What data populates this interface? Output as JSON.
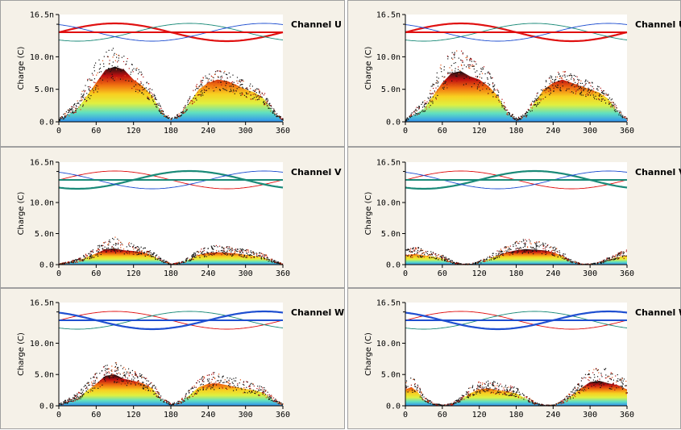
{
  "colors": {
    "panel_bg": "#f5f1e8",
    "plot_bg": "#ffffff",
    "phase_u": "#e01010",
    "phase_v": "#1a8a78",
    "phase_w": "#1f4fd0",
    "scatter_gradient": [
      "#111111",
      "#c01010",
      "#f07010",
      "#f8d020",
      "#e0f040",
      "#60e0c0",
      "#3090f0"
    ]
  },
  "ylabel": "Charge (C)",
  "y_ticks": [
    "16.5n",
    "10.0n",
    "5.0n",
    "0.0"
  ],
  "x_ticks": [
    "0",
    "60",
    "120",
    "180",
    "240",
    "300",
    "360"
  ],
  "chart_data": [
    {
      "type": "scatter",
      "channel": "Channel U",
      "highlight_phase": "U",
      "ylabel": "Charge (C)",
      "xlim": [
        0,
        360
      ],
      "ylim": [
        0,
        16.5
      ],
      "envelope_x": [
        0,
        30,
        60,
        75,
        90,
        105,
        120,
        135,
        150,
        165,
        180,
        195,
        210,
        225,
        240,
        255,
        270,
        285,
        300,
        315,
        330,
        345,
        360
      ],
      "envelope_y": [
        0.3,
        2.0,
        6.0,
        8.0,
        8.5,
        8.0,
        6.5,
        5.5,
        4.0,
        1.5,
        0.3,
        1.0,
        3.0,
        5.0,
        6.0,
        6.5,
        6.3,
        5.7,
        5.0,
        4.5,
        3.5,
        1.5,
        0.3
      ],
      "peak_y": [
        0.6,
        3.5,
        9.5,
        11.0,
        11.5,
        10.5,
        9.0,
        7.5,
        5.0,
        2.0,
        0.6,
        1.5,
        4.0,
        6.5,
        7.5,
        8.0,
        7.8,
        7.0,
        6.3,
        5.5,
        4.5,
        2.0,
        0.6
      ]
    },
    {
      "type": "scatter",
      "channel": "Channel U",
      "highlight_phase": "U",
      "ylabel": "Charge (C)",
      "xlim": [
        0,
        360
      ],
      "ylim": [
        0,
        16.5
      ],
      "envelope_x": [
        0,
        30,
        60,
        75,
        90,
        105,
        120,
        135,
        150,
        165,
        180,
        195,
        210,
        225,
        240,
        255,
        270,
        285,
        300,
        315,
        330,
        345,
        360
      ],
      "envelope_y": [
        0.3,
        2.0,
        6.0,
        7.5,
        7.8,
        7.0,
        6.5,
        5.5,
        4.0,
        1.5,
        0.3,
        1.0,
        3.0,
        5.0,
        6.0,
        6.5,
        6.0,
        5.5,
        5.0,
        4.5,
        3.5,
        1.5,
        0.3
      ],
      "peak_y": [
        0.6,
        3.5,
        9.5,
        11.0,
        11.0,
        10.0,
        9.0,
        8.0,
        5.0,
        2.0,
        0.6,
        1.5,
        4.0,
        6.5,
        7.5,
        8.0,
        7.5,
        6.8,
        6.3,
        5.5,
        4.5,
        2.0,
        0.6
      ]
    },
    {
      "type": "scatter",
      "channel": "Channel V",
      "highlight_phase": "V",
      "ylabel": "Charge (C)",
      "xlim": [
        0,
        360
      ],
      "ylim": [
        0,
        16.5
      ],
      "envelope_x": [
        0,
        30,
        60,
        75,
        90,
        105,
        120,
        135,
        150,
        165,
        180,
        195,
        210,
        225,
        240,
        255,
        270,
        285,
        300,
        315,
        330,
        345,
        360
      ],
      "envelope_y": [
        0.1,
        0.6,
        1.8,
        2.5,
        2.6,
        2.3,
        2.2,
        2.0,
        1.5,
        0.6,
        0.1,
        0.3,
        0.9,
        1.6,
        1.9,
        2.0,
        1.9,
        1.8,
        1.6,
        1.4,
        1.1,
        0.5,
        0.1
      ],
      "peak_y": [
        0.2,
        1.0,
        3.0,
        4.0,
        4.5,
        3.8,
        3.5,
        3.0,
        2.2,
        1.0,
        0.2,
        0.5,
        1.5,
        2.6,
        3.0,
        3.2,
        3.0,
        2.8,
        2.5,
        2.2,
        1.8,
        0.8,
        0.2
      ]
    },
    {
      "type": "scatter",
      "channel": "Channel V",
      "highlight_phase": "V",
      "ylabel": "Charge (C)",
      "xlim": [
        0,
        360
      ],
      "ylim": [
        0,
        16.5
      ],
      "envelope_x": [
        0,
        15,
        30,
        45,
        60,
        75,
        90,
        105,
        120,
        135,
        150,
        165,
        180,
        195,
        210,
        225,
        240,
        255,
        270,
        285,
        300,
        315,
        330,
        345,
        360
      ],
      "envelope_y": [
        1.5,
        1.7,
        1.5,
        1.3,
        1.0,
        0.4,
        0.1,
        0.1,
        0.4,
        0.9,
        1.5,
        2.0,
        2.3,
        2.5,
        2.4,
        2.3,
        2.0,
        1.4,
        0.5,
        0.1,
        0.1,
        0.3,
        0.8,
        1.2,
        1.5
      ],
      "peak_y": [
        2.5,
        3.0,
        2.6,
        2.2,
        1.6,
        0.7,
        0.2,
        0.2,
        0.7,
        1.5,
        2.5,
        3.2,
        3.8,
        4.5,
        4.0,
        3.6,
        3.0,
        2.2,
        0.8,
        0.2,
        0.2,
        0.5,
        1.3,
        2.0,
        2.5
      ]
    },
    {
      "type": "scatter",
      "channel": "Channel W",
      "highlight_phase": "W",
      "ylabel": "Charge (C)",
      "xlim": [
        0,
        360
      ],
      "ylim": [
        0,
        16.5
      ],
      "envelope_x": [
        0,
        30,
        60,
        75,
        90,
        105,
        120,
        135,
        150,
        165,
        180,
        195,
        210,
        225,
        240,
        255,
        270,
        285,
        300,
        315,
        330,
        345,
        360
      ],
      "envelope_y": [
        0.2,
        1.2,
        3.5,
        4.8,
        5.0,
        4.3,
        4.0,
        3.6,
        2.8,
        1.0,
        0.2,
        0.6,
        1.7,
        3.0,
        3.5,
        3.6,
        3.3,
        3.0,
        2.7,
        2.5,
        2.0,
        0.8,
        0.2
      ],
      "peak_y": [
        0.4,
        2.2,
        5.5,
        6.8,
        7.2,
        6.2,
        5.8,
        5.0,
        3.8,
        1.5,
        0.4,
        1.0,
        2.8,
        4.5,
        5.2,
        5.6,
        5.0,
        4.5,
        4.0,
        3.6,
        3.0,
        1.3,
        0.4
      ]
    },
    {
      "type": "scatter",
      "channel": "Channel W",
      "highlight_phase": "W",
      "ylabel": "Charge (C)",
      "xlim": [
        0,
        360
      ],
      "ylim": [
        0,
        16.5
      ],
      "envelope_x": [
        0,
        10,
        20,
        30,
        45,
        60,
        75,
        90,
        105,
        120,
        135,
        150,
        165,
        180,
        195,
        210,
        225,
        240,
        255,
        270,
        285,
        300,
        315,
        330,
        345,
        360
      ],
      "envelope_y": [
        2.6,
        3.0,
        2.2,
        1.0,
        0.3,
        0.1,
        0.3,
        1.0,
        2.0,
        2.6,
        2.8,
        2.5,
        2.3,
        2.0,
        1.2,
        0.4,
        0.1,
        0.1,
        0.6,
        1.6,
        2.8,
        3.8,
        4.0,
        3.6,
        3.3,
        2.6
      ],
      "peak_y": [
        4.0,
        4.8,
        3.4,
        1.6,
        0.5,
        0.2,
        0.5,
        1.6,
        3.2,
        4.0,
        4.2,
        3.8,
        3.4,
        3.0,
        1.8,
        0.6,
        0.2,
        0.2,
        1.0,
        2.6,
        4.5,
        6.0,
        6.5,
        5.8,
        5.0,
        4.0
      ]
    }
  ]
}
